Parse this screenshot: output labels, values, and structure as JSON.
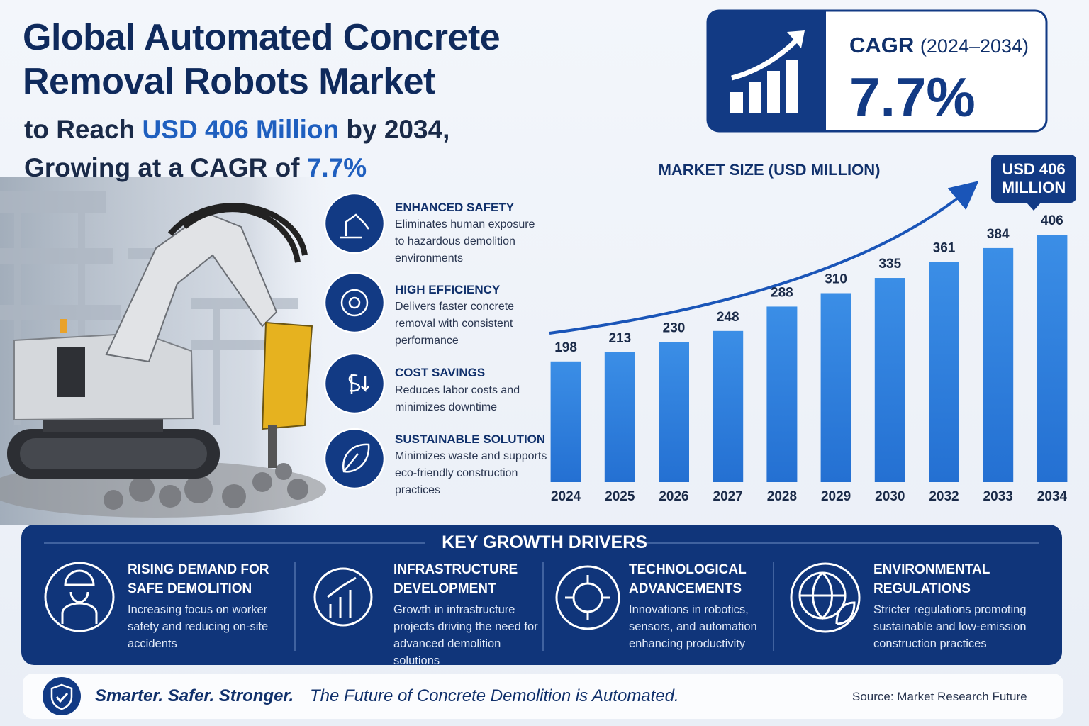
{
  "header": {
    "title_lines": [
      "Global Automated Concrete",
      "Removal Robots Market"
    ],
    "subtitle": {
      "line1": [
        "to Reach ",
        "USD 406 Million",
        " by 2034,"
      ],
      "line2": [
        "Growing at a CAGR of ",
        "7.7%"
      ]
    }
  },
  "cagr": {
    "label": "CAGR",
    "period": "(2024–2034)",
    "value": "7.7%"
  },
  "features": [
    {
      "title": "ENHANCED SAFETY",
      "text": "Eliminates human exposure to hazardous demolition environments"
    },
    {
      "title": "HIGH EFFICIENCY",
      "text": "Delivers faster concrete removal with consistent performance"
    },
    {
      "title": "COST SAVINGS",
      "text": "Reduces labor costs and minimizes downtime"
    },
    {
      "title": "SUSTAINABLE SOLUTION",
      "text": "Minimizes waste and supports eco-friendly construction practices"
    }
  ],
  "chart_data": {
    "type": "bar",
    "title": "MARKET SIZE (USD MILLION)",
    "annotation": "USD 406 MILLION",
    "categories": [
      "2024",
      "2025",
      "2026",
      "2027",
      "2028",
      "2029",
      "2030",
      "2032",
      "2033",
      "2034"
    ],
    "values": [
      198,
      213,
      230,
      248,
      288,
      310,
      335,
      361,
      384,
      406
    ],
    "color": "#2f80dc"
  },
  "drivers": {
    "title": "KEY GROWTH DRIVERS",
    "items": [
      {
        "title": "RISING DEMAND FOR SAFE DEMOLITION",
        "text": "Increasing focus on worker safety and reducing on-site accidents"
      },
      {
        "title": "INFRASTRUCTURE DEVELOPMENT",
        "text": "Growth in infrastructure projects driving the need for advanced demolition solutions"
      },
      {
        "title": "TECHNOLOGICAL ADVANCEMENTS",
        "text": "Innovations in robotics, sensors, and automation enhancing productivity"
      },
      {
        "title": "ENVIRONMENTAL REGULATIONS",
        "text": "Stricter regulations promoting sustainable and low-emission construction practices"
      }
    ]
  },
  "footer": {
    "tagline": "Smarter. Safer. Stronger.",
    "statement": "The Future of Concrete Demolition is Automated.",
    "source": "Source: Market Research Future"
  }
}
